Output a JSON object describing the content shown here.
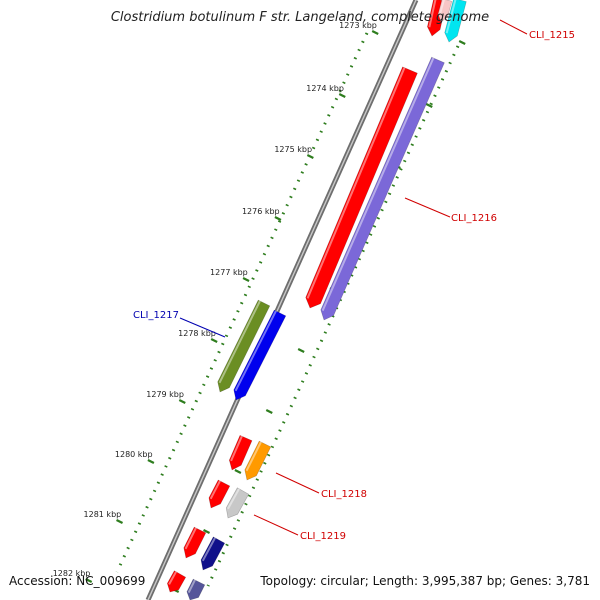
{
  "title": "Clostridium botulinum F str. Langeland, complete genome",
  "accession": "Accession: NC_009699",
  "topology": "Topology: circular; Length: 3,995,387 bp; Genes: 3,781",
  "colors": {
    "backbone": "#8a8a8a",
    "tick": "#2e7d1e",
    "label_red": "#d00000",
    "label_blue": "#0000b0"
  },
  "kbp_ticks": [
    "1273 kbp",
    "1274 kbp",
    "1275 kbp",
    "1276 kbp",
    "1277 kbp",
    "1278 kbp",
    "1279 kbp",
    "1280 kbp",
    "1281 kbp",
    "1282 kbp"
  ],
  "gene_labels": [
    {
      "name": "CLI_1215",
      "color": "red"
    },
    {
      "name": "CLI_1216",
      "color": "red"
    },
    {
      "name": "CLI_1217",
      "color": "blue"
    },
    {
      "name": "CLI_1218",
      "color": "red"
    },
    {
      "name": "CLI_1219",
      "color": "red"
    }
  ],
  "features": [
    {
      "id": "f-top-red",
      "color": "#ff0000"
    },
    {
      "id": "f-top-cyan",
      "color": "#00e5f0"
    },
    {
      "id": "f-top-pink",
      "color": "#f7c6c6"
    },
    {
      "id": "f-cli1216-red",
      "color": "#ff0000"
    },
    {
      "id": "f-cli1216-purple",
      "color": "#7b68d8"
    },
    {
      "id": "f-cli1217-green",
      "color": "#6b8e23"
    },
    {
      "id": "f-cli1217-blue",
      "color": "#0000ee"
    },
    {
      "id": "f-red-a",
      "color": "#ff0000"
    },
    {
      "id": "f-cli1218-orange",
      "color": "#ff9a00"
    },
    {
      "id": "f-red-b",
      "color": "#ff0000"
    },
    {
      "id": "f-cli1219-gray",
      "color": "#c8c8c8"
    },
    {
      "id": "f-red-c",
      "color": "#ff0000"
    },
    {
      "id": "f-navy-a",
      "color": "#10108a"
    },
    {
      "id": "f-red-d",
      "color": "#ff0000"
    },
    {
      "id": "f-slate-a",
      "color": "#55559a"
    }
  ]
}
